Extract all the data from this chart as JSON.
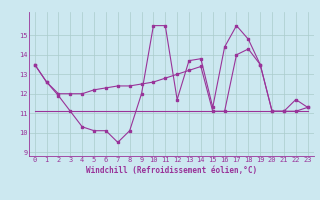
{
  "xlabel": "Windchill (Refroidissement éolien,°C)",
  "background_color": "#cce8f0",
  "grid_color": "#aacccc",
  "line_color": "#993399",
  "xlim_min": -0.5,
  "xlim_max": 23.5,
  "ylim_min": 8.8,
  "ylim_max": 16.2,
  "yticks": [
    9,
    10,
    11,
    12,
    13,
    14,
    15
  ],
  "xticks": [
    0,
    1,
    2,
    3,
    4,
    5,
    6,
    7,
    8,
    9,
    10,
    11,
    12,
    13,
    14,
    15,
    16,
    17,
    18,
    19,
    20,
    21,
    22,
    23
  ],
  "series1_x": [
    0,
    1,
    2,
    3,
    4,
    5,
    6,
    7,
    8,
    9,
    10,
    11,
    12,
    13,
    14,
    15,
    16,
    17,
    18,
    19,
    20,
    21,
    22,
    23
  ],
  "series1_y": [
    13.5,
    12.6,
    11.9,
    11.1,
    10.3,
    10.1,
    10.1,
    9.5,
    10.1,
    12.0,
    15.5,
    15.5,
    11.7,
    13.7,
    13.8,
    11.3,
    14.4,
    15.5,
    14.8,
    13.5,
    11.1,
    11.1,
    11.7,
    11.3
  ],
  "series2_x": [
    0,
    1,
    2,
    3,
    4,
    5,
    6,
    7,
    8,
    9,
    10,
    11,
    12,
    13,
    14,
    15,
    16,
    17,
    18,
    19,
    20,
    21,
    22,
    23
  ],
  "series2_y": [
    13.5,
    12.6,
    12.0,
    12.0,
    12.0,
    12.2,
    12.3,
    12.4,
    12.4,
    12.5,
    12.6,
    12.8,
    13.0,
    13.2,
    13.4,
    11.1,
    11.1,
    14.0,
    14.3,
    13.5,
    11.1,
    11.1,
    11.1,
    11.3
  ],
  "series3_x": [
    0,
    23
  ],
  "series3_y": [
    11.1,
    11.1
  ],
  "fontsize_xlabel": 5.5,
  "fontsize_ticks": 5.0
}
